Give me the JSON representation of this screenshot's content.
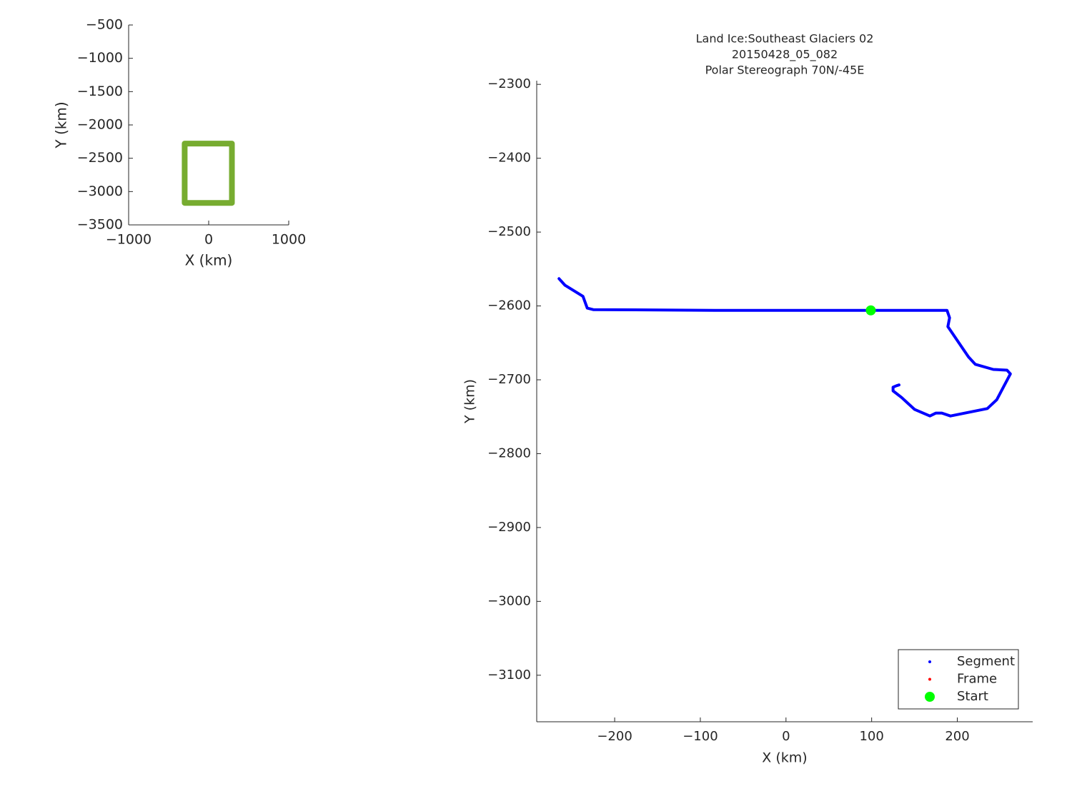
{
  "chart_data": [
    {
      "type": "line",
      "xlabel": "X (km)",
      "ylabel": "Y (km)",
      "xlim": [
        -1000,
        1000
      ],
      "ylim": [
        -3500,
        -500
      ],
      "xticks": [
        {
          "value": -1000,
          "label": "−1000"
        },
        0,
        1000
      ],
      "yticks": [
        {
          "value": -500,
          "label": "−500"
        },
        {
          "value": -1000,
          "label": "−1000"
        },
        {
          "value": -1500,
          "label": "−1500"
        },
        {
          "value": -2000,
          "label": "−2000"
        },
        {
          "value": -2500,
          "label": "−2500"
        },
        {
          "value": -3000,
          "label": "−3000"
        },
        {
          "value": -3500,
          "label": "−3500"
        }
      ],
      "series": [
        {
          "color": "#77ac30",
          "x": [
            -300,
            290,
            290,
            -300,
            -300
          ],
          "y": [
            -2280,
            -2280,
            -3170,
            -3170,
            -2280
          ]
        }
      ]
    },
    {
      "type": "line",
      "title": [
        "Land Ice:Southeast  Glaciers 02",
        "20150428_05_082",
        "Polar Stereograph 70N/-45E"
      ],
      "xlabel": "X (km)",
      "ylabel": "Y (km)",
      "xlim": [
        -291,
        288
      ],
      "ylim": [
        -3163,
        -2295
      ],
      "xticks": [
        {
          "value": -200,
          "label": "−200"
        },
        {
          "value": -100,
          "label": "−100"
        },
        0,
        100,
        200
      ],
      "yticks": [
        {
          "value": -2300,
          "label": "−2300"
        },
        {
          "value": -2400,
          "label": "−2400"
        },
        {
          "value": -2500,
          "label": "−2500"
        },
        {
          "value": -2600,
          "label": "−2600"
        },
        {
          "value": -2700,
          "label": "−2700"
        },
        {
          "value": -2800,
          "label": "−2800"
        },
        {
          "value": -2900,
          "label": "−2900"
        },
        {
          "value": -3000,
          "label": "−3000"
        },
        {
          "value": -3100,
          "label": "−3100"
        }
      ],
      "legend": "lower right",
      "series": [
        {
          "name": "Segment",
          "color": "#0000ff",
          "x": [
            -265,
            -258,
            -237,
            -232,
            -225,
            -83,
            83,
            188,
            191,
            189,
            213,
            221,
            242,
            258,
            262,
            246,
            235,
            192,
            182,
            175,
            168,
            150,
            135,
            125,
            125,
            129,
            132
          ],
          "y": [
            -2563,
            -2572,
            -2587,
            -2603,
            -2605,
            -2606,
            -2606,
            -2606,
            -2616,
            -2628,
            -2669,
            -2679,
            -2686,
            -2687,
            -2692,
            -2727,
            -2739,
            -2749,
            -2745,
            -2745,
            -2749,
            -2740,
            -2724,
            -2715,
            -2710,
            -2708,
            -2707
          ]
        },
        {
          "name": "Frame",
          "color": "#ff0000",
          "x": [],
          "y": []
        },
        {
          "name": "Start",
          "color": "#00ff00",
          "x": [
            99
          ],
          "y": [
            -2606
          ]
        }
      ]
    }
  ]
}
